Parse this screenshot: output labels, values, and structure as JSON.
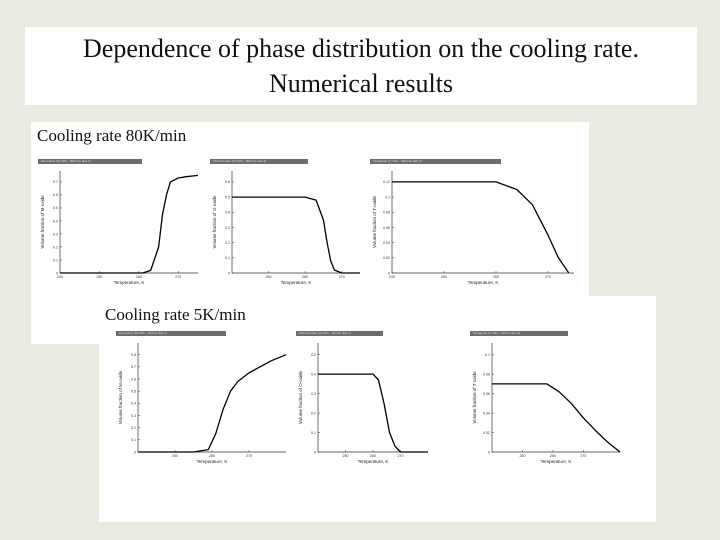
{
  "title": {
    "line1": "Dependence  of phase distribution on the cooling rate.",
    "line2": "Numerical results"
  },
  "panels": [
    {
      "label": "Cooling rate 80K/min",
      "plots": [
        {
          "header": "Monoclinic (M) Ntlh – 80K/min (EH 1)",
          "ylabel": "Volume fraction of M-oxide",
          "xlabel": "Temperature, K"
        },
        {
          "header": "Orthorhombic (O) Ntlh – 80K/min (EH 2)",
          "ylabel": "Volume fraction of O-oxide",
          "xlabel": "Temperature, K"
        },
        {
          "header": "Tetragonal (T) Ntlh – 80K/min (EH 3)",
          "ylabel": "Volume fraction of T-oxide",
          "xlabel": "Temperature, K"
        }
      ]
    },
    {
      "label": "Cooling rate 5K/min",
      "plots": [
        {
          "header": "Monoclinic (M) Ntlh – 5K/min (EH 1)",
          "ylabel": "Volume fraction of M-oxide",
          "xlabel": "Temperature, K"
        },
        {
          "header": "Orthorhombic (O) Ntlh – 5K/min (EH 2)",
          "ylabel": "Volume fraction of O-oxide",
          "xlabel": "Temperature, K"
        },
        {
          "header": "Tetragonal (T) Ntlh – 5K/min (EH 3)",
          "ylabel": "Volume fraction of T-oxide",
          "xlabel": "Temperature, K"
        }
      ]
    }
  ],
  "chart_data": [
    {
      "type": "line",
      "panel": "Cooling rate 80K/min",
      "xlabel": "Temperature, K",
      "ylabel": "Volume fraction of M-oxide",
      "xticks": [
        240,
        250,
        260,
        270
      ],
      "yticks": [
        0,
        0.1,
        0.2,
        0.3,
        0.4,
        0.5,
        0.6,
        0.7
      ],
      "series": [
        {
          "x": [
            240,
            255,
            261,
            263,
            265,
            266,
            267,
            268,
            270,
            272,
            275
          ],
          "y": [
            0,
            0,
            0,
            0.02,
            0.2,
            0.45,
            0.6,
            0.7,
            0.73,
            0.74,
            0.75
          ]
        }
      ]
    },
    {
      "type": "line",
      "panel": "Cooling rate 80K/min",
      "xlabel": "Temperature, K",
      "ylabel": "Volume fraction of O-oxide",
      "xticks": [
        250,
        260,
        270
      ],
      "yticks": [
        0,
        0.1,
        0.2,
        0.3,
        0.4,
        0.5,
        0.6
      ],
      "series": [
        {
          "x": [
            240,
            250,
            260,
            263,
            265,
            266,
            267,
            268,
            270,
            275
          ],
          "y": [
            0.5,
            0.5,
            0.5,
            0.48,
            0.35,
            0.2,
            0.08,
            0.02,
            0,
            0
          ]
        }
      ]
    },
    {
      "type": "line",
      "panel": "Cooling rate 80K/min",
      "xlabel": "Temperature, K",
      "ylabel": "Volume fraction of T-oxide",
      "xticks": [
        240,
        250,
        260,
        270
      ],
      "yticks": [
        0,
        0.02,
        0.04,
        0.06,
        0.08,
        0.1,
        0.12
      ],
      "series": [
        {
          "x": [
            240,
            255,
            260,
            264,
            267,
            270,
            272,
            274
          ],
          "y": [
            0.12,
            0.12,
            0.12,
            0.11,
            0.09,
            0.05,
            0.02,
            0
          ]
        }
      ]
    },
    {
      "type": "line",
      "panel": "Cooling rate 5K/min",
      "xlabel": "Temperature, K",
      "ylabel": "Volume fraction of M-oxide",
      "xticks": [
        250,
        260,
        270
      ],
      "yticks": [
        0,
        0.1,
        0.2,
        0.3,
        0.4,
        0.5,
        0.6,
        0.7,
        0.8
      ],
      "series": [
        {
          "x": [
            240,
            255,
            259,
            261,
            263,
            265,
            267,
            270,
            273,
            276,
            280
          ],
          "y": [
            0,
            0,
            0.02,
            0.15,
            0.35,
            0.5,
            0.58,
            0.65,
            0.7,
            0.75,
            0.8
          ]
        }
      ]
    },
    {
      "type": "line",
      "panel": "Cooling rate 5K/min",
      "xlabel": "Temperature, K",
      "ylabel": "Volume fraction of O-oxide",
      "xticks": [
        250,
        260,
        270
      ],
      "yticks": [
        0,
        0.1,
        0.2,
        0.3,
        0.4,
        0.5
      ],
      "series": [
        {
          "x": [
            240,
            255,
            260,
            262,
            264,
            266,
            268,
            270,
            280
          ],
          "y": [
            0.4,
            0.4,
            0.4,
            0.37,
            0.25,
            0.1,
            0.03,
            0,
            0
          ]
        }
      ]
    },
    {
      "type": "line",
      "panel": "Cooling rate 5K/min",
      "xlabel": "Temperature, K",
      "ylabel": "Volume fraction of T-oxide",
      "xticks": [
        250,
        260,
        270
      ],
      "yticks": [
        0,
        0.02,
        0.04,
        0.06,
        0.08,
        0.1
      ],
      "series": [
        {
          "x": [
            240,
            258,
            262,
            266,
            270,
            274,
            278,
            282
          ],
          "y": [
            0.07,
            0.07,
            0.062,
            0.05,
            0.035,
            0.022,
            0.01,
            0
          ]
        }
      ]
    }
  ]
}
